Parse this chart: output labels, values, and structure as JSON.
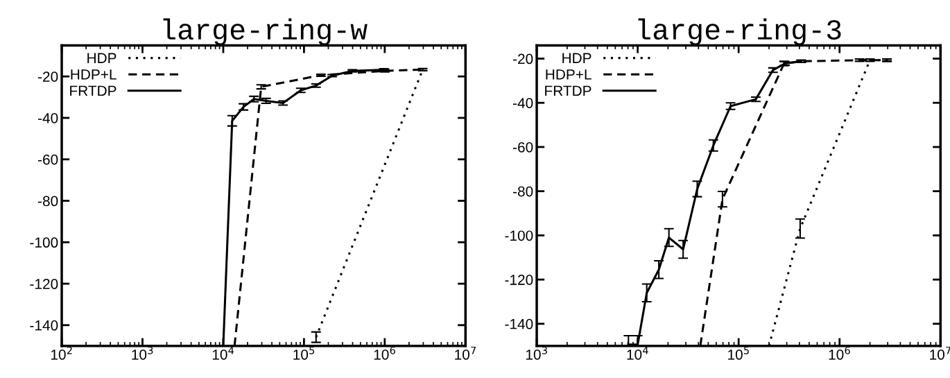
{
  "chart_data": [
    {
      "type": "line",
      "title": "large-ring-w",
      "log": "x",
      "xlim": [
        100,
        10000000
      ],
      "ylim": [
        -150,
        -5
      ],
      "xticks": [
        {
          "value": 100,
          "label": "10$^{2}$"
        },
        {
          "value": 1000,
          "label": "10$^{3}$"
        },
        {
          "value": 10000,
          "label": "10$^{4}$"
        },
        {
          "value": 100000,
          "label": "10$^{5}$"
        },
        {
          "value": 1000000,
          "label": "10$^{6}$"
        },
        {
          "value": 10000000,
          "label": "10$^{7}$"
        }
      ],
      "yticks": [
        -140,
        -120,
        -100,
        -80,
        -60,
        -40,
        -20
      ],
      "grid": false,
      "legend": "top left",
      "series": [
        {
          "name": "HDP",
          "color": "#000000",
          "line_style": "dotted",
          "x": [
            141000,
            2950000
          ],
          "values": [
            -145.8,
            -16.7
          ],
          "errors": [
            2.5,
            null
          ]
        },
        {
          "name": "HDP+L",
          "color": "#000000",
          "line_style": "dashed",
          "x": [
            13800,
            29500,
            162000,
            1000000,
            2950000
          ],
          "values": [
            -150,
            -25,
            -19.4,
            -17.3,
            -16.7
          ],
          "errors": [
            null,
            1,
            0.5,
            0.5,
            0.5
          ]
        },
        {
          "name": "FRTDP",
          "color": "#000000",
          "line_style": "solid",
          "x": [
            10000,
            12900,
            17800,
            24000,
            33900,
            55000,
            91200,
            141000,
            224000,
            398000,
            977000
          ],
          "values": [
            -150,
            -41.4,
            -34.7,
            -30.9,
            -31.8,
            -32.8,
            -26.7,
            -24.4,
            -19.6,
            -17.3,
            -16.8
          ],
          "errors": [
            null,
            2.5,
            1.5,
            1.3,
            1.2,
            1,
            1,
            0.8,
            0.5,
            0.5,
            0.5
          ]
        }
      ]
    },
    {
      "type": "line",
      "title": "large-ring-3",
      "log": "x",
      "xlim": [
        1000,
        10000000
      ],
      "ylim": [
        -150,
        -14
      ],
      "xticks": [
        {
          "value": 1000,
          "label": "10$^{3}$"
        },
        {
          "value": 10000,
          "label": "10$^{4}$"
        },
        {
          "value": 100000,
          "label": "10$^{5}$"
        },
        {
          "value": 1000000,
          "label": "10$^{6}$"
        },
        {
          "value": 10000000,
          "label": "10$^{7}$"
        }
      ],
      "yticks": [
        -140,
        -120,
        -100,
        -80,
        -60,
        -40,
        -20
      ],
      "grid": false,
      "legend": "top left",
      "series": [
        {
          "name": "HDP",
          "color": "#000000",
          "line_style": "dotted",
          "x": [
            200000,
            407000,
            2000000,
            2950000
          ],
          "values": [
            -150,
            -96.9,
            -20.7,
            -20.7
          ],
          "errors": [
            null,
            4.3,
            0.5,
            0.5
          ]
        },
        {
          "name": "HDP+L",
          "color": "#000000",
          "line_style": "dashed",
          "x": [
            41700,
            69200,
            282000,
            417000,
            1580000,
            2950000
          ],
          "values": [
            -150,
            -83.6,
            -22.2,
            -21.2,
            -20.7,
            -20.7
          ],
          "errors": [
            null,
            3.5,
            1,
            0.5,
            0.5,
            0.5
          ]
        },
        {
          "name": "FRTDP",
          "color": "#000000",
          "line_style": "solid",
          "x": [
            8100,
            10000,
            12300,
            16200,
            20400,
            28200,
            38900,
            56200,
            83200,
            148000,
            219000,
            288000,
            417000
          ],
          "values": [
            -149.4,
            -149.4,
            -126,
            -115.5,
            -101,
            -106.3,
            -79,
            -59.3,
            -41.5,
            -38.4,
            -25.2,
            -22.2,
            -21.2
          ],
          "errors": [
            4,
            4,
            4,
            4,
            4,
            4,
            3.5,
            2.5,
            1.5,
            1,
            1,
            0.8,
            0.5
          ]
        }
      ]
    }
  ]
}
